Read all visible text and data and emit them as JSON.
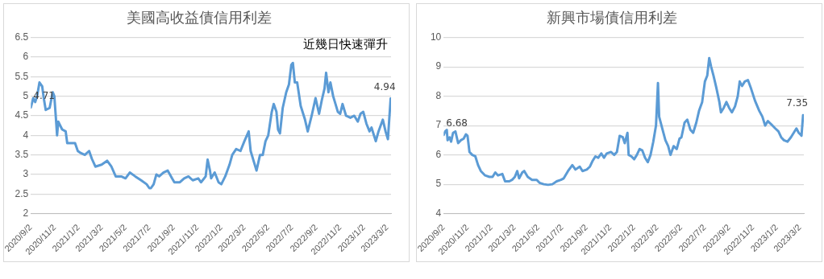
{
  "chart_data": [
    {
      "type": "line",
      "title": "美國高收益債信用利差",
      "x": [
        "2020-09-02",
        "2020-09-08",
        "2020-09-13",
        "2020-09-18",
        "2020-09-24",
        "2020-10-01",
        "2020-10-05",
        "2020-10-10",
        "2020-10-20",
        "2020-10-28",
        "2020-11-01",
        "2020-11-06",
        "2020-11-08",
        "2020-11-11",
        "2020-11-21",
        "2020-11-30",
        "2020-12-04",
        "2020-12-13",
        "2020-12-24",
        "2020-12-31",
        "2021-01-07",
        "2021-01-18",
        "2021-01-29",
        "2021-02-05",
        "2021-02-14",
        "2021-03-02",
        "2021-03-16",
        "2021-03-27",
        "2021-04-07",
        "2021-04-21",
        "2021-05-02",
        "2021-05-13",
        "2021-05-27",
        "2021-06-11",
        "2021-06-25",
        "2021-07-02",
        "2021-07-06",
        "2021-07-13",
        "2021-07-20",
        "2021-07-27",
        "2021-08-07",
        "2021-08-18",
        "2021-08-29",
        "2021-09-04",
        "2021-09-18",
        "2021-09-29",
        "2021-10-10",
        "2021-10-21",
        "2021-11-04",
        "2021-11-11",
        "2021-11-23",
        "2021-11-28",
        "2021-12-04",
        "2021-12-07",
        "2021-12-16",
        "2021-12-26",
        "2022-01-02",
        "2022-01-12",
        "2022-01-23",
        "2022-01-30",
        "2022-02-09",
        "2022-02-20",
        "2022-03-02",
        "2022-03-13",
        "2022-03-18",
        "2022-03-27",
        "2022-04-02",
        "2022-04-11",
        "2022-04-18",
        "2022-04-25",
        "2022-05-02",
        "2022-05-11",
        "2022-05-16",
        "2022-05-23",
        "2022-05-27",
        "2022-06-01",
        "2022-06-08",
        "2022-06-17",
        "2022-06-24",
        "2022-06-30",
        "2022-07-04",
        "2022-07-09",
        "2022-07-15",
        "2022-07-24",
        "2022-08-04",
        "2022-08-11",
        "2022-08-21",
        "2022-08-31",
        "2022-09-09",
        "2022-09-16",
        "2022-09-23",
        "2022-09-27",
        "2022-10-03",
        "2022-10-08",
        "2022-10-15",
        "2022-10-27",
        "2022-11-02",
        "2022-11-08",
        "2022-11-17",
        "2022-11-28",
        "2022-12-08",
        "2022-12-17",
        "2022-12-24",
        "2022-12-31",
        "2023-01-08",
        "2023-01-16",
        "2023-01-21",
        "2023-02-01",
        "2023-02-08",
        "2023-02-19",
        "2023-02-26",
        "2023-03-04",
        "2023-03-11"
      ],
      "series": [
        {
          "color": "#5b9bd5",
          "values": [
            4.71,
            4.95,
            4.85,
            5.0,
            5.35,
            5.25,
            4.95,
            4.65,
            4.7,
            5.1,
            5.0,
            4.3,
            4.0,
            4.35,
            4.15,
            4.1,
            3.8,
            3.8,
            3.8,
            3.6,
            3.55,
            3.5,
            3.6,
            3.4,
            3.2,
            3.25,
            3.35,
            3.2,
            2.95,
            2.95,
            2.9,
            3.05,
            2.95,
            2.85,
            2.75,
            2.65,
            2.65,
            2.75,
            3.0,
            2.95,
            3.05,
            3.1,
            2.9,
            2.8,
            2.8,
            2.9,
            2.95,
            2.85,
            2.9,
            2.8,
            2.95,
            3.38,
            3.1,
            2.9,
            3.05,
            2.8,
            2.75,
            2.95,
            3.25,
            3.5,
            3.65,
            3.6,
            3.85,
            4.1,
            3.6,
            3.3,
            3.1,
            3.5,
            3.5,
            3.85,
            4.0,
            4.6,
            4.8,
            4.6,
            4.15,
            4.05,
            4.7,
            5.1,
            5.3,
            5.8,
            5.85,
            5.35,
            5.35,
            4.75,
            4.4,
            4.1,
            4.5,
            4.95,
            4.55,
            4.9,
            5.2,
            5.6,
            5.1,
            5.35,
            5.0,
            4.6,
            4.55,
            4.8,
            4.5,
            4.45,
            4.5,
            4.35,
            4.55,
            4.6,
            4.3,
            4.1,
            4.2,
            3.85,
            4.1,
            4.4,
            4.1,
            3.9,
            4.94
          ]
        }
      ],
      "xlim": [
        "2020-09-02",
        "2023-03-12"
      ],
      "xticks": [
        {
          "value": "2020-09-02",
          "label": "2020/9/2"
        },
        {
          "value": "2020-11-02",
          "label": "2020/11/2"
        },
        {
          "value": "2021-01-02",
          "label": "2021/1/2"
        },
        {
          "value": "2021-03-02",
          "label": "2021/3/2"
        },
        {
          "value": "2021-05-02",
          "label": "2021/5/2"
        },
        {
          "value": "2021-07-02",
          "label": "2021/7/2"
        },
        {
          "value": "2021-09-02",
          "label": "2021/9/2"
        },
        {
          "value": "2021-11-02",
          "label": "2021/11/2"
        },
        {
          "value": "2022-01-02",
          "label": "2022/1/2"
        },
        {
          "value": "2022-03-02",
          "label": "2022/3/2"
        },
        {
          "value": "2022-05-02",
          "label": "2022/5/2"
        },
        {
          "value": "2022-07-02",
          "label": "2022/7/2"
        },
        {
          "value": "2022-09-02",
          "label": "2022/9/2"
        },
        {
          "value": "2022-11-02",
          "label": "2022/11/2"
        },
        {
          "value": "2023-01-02",
          "label": "2023/1/2"
        },
        {
          "value": "2023-03-02",
          "label": "2023/3/2"
        }
      ],
      "ylim": [
        2,
        6.5
      ],
      "yticks": [
        2,
        2.5,
        3,
        3.5,
        4,
        4.5,
        5,
        5.5,
        6,
        6.5
      ],
      "grid": "y",
      "legend": false,
      "marker": "none",
      "line_style": "solid",
      "annotations": [
        "近幾日快速彈升",
        {
          "text": "4.71",
          "x": "2020-09-02",
          "y": 4.71
        },
        {
          "text": "4.94",
          "x": "2023-03-11",
          "y": 4.94
        }
      ]
    },
    {
      "type": "line",
      "title": "新興市場債信用利差",
      "x": [
        "2020-09-02",
        "2020-09-06",
        "2020-09-10",
        "2020-09-12",
        "2020-09-17",
        "2020-09-21",
        "2020-09-26",
        "2020-10-02",
        "2020-10-09",
        "2020-10-16",
        "2020-10-23",
        "2020-10-29",
        "2020-11-02",
        "2020-11-07",
        "2020-11-14",
        "2020-11-22",
        "2020-11-29",
        "2020-12-06",
        "2020-12-17",
        "2020-12-28",
        "2021-01-05",
        "2021-01-12",
        "2021-01-19",
        "2021-01-30",
        "2021-02-06",
        "2021-02-17",
        "2021-02-24",
        "2021-03-03",
        "2021-03-09",
        "2021-03-14",
        "2021-03-22",
        "2021-03-27",
        "2021-04-05",
        "2021-04-16",
        "2021-04-28",
        "2021-05-05",
        "2021-05-16",
        "2021-05-27",
        "2021-06-07",
        "2021-06-18",
        "2021-06-29",
        "2021-07-06",
        "2021-07-17",
        "2021-07-28",
        "2021-08-05",
        "2021-08-16",
        "2021-08-23",
        "2021-09-03",
        "2021-09-11",
        "2021-09-18",
        "2021-09-25",
        "2021-10-02",
        "2021-10-10",
        "2021-10-17",
        "2021-10-24",
        "2021-11-04",
        "2021-11-12",
        "2021-11-19",
        "2021-11-26",
        "2021-12-04",
        "2021-12-09",
        "2021-12-16",
        "2021-12-19",
        "2021-12-26",
        "2022-01-02",
        "2022-01-09",
        "2022-01-16",
        "2022-01-23",
        "2022-01-30",
        "2022-02-06",
        "2022-02-13",
        "2022-02-20",
        "2022-02-27",
        "2022-03-04",
        "2022-03-07",
        "2022-03-15",
        "2022-03-23",
        "2022-03-30",
        "2022-04-05",
        "2022-04-13",
        "2022-04-21",
        "2022-04-28",
        "2022-05-03",
        "2022-05-11",
        "2022-05-18",
        "2022-05-26",
        "2022-06-02",
        "2022-06-10",
        "2022-06-17",
        "2022-06-25",
        "2022-07-02",
        "2022-07-08",
        "2022-07-13",
        "2022-07-18",
        "2022-07-24",
        "2022-07-31",
        "2022-08-08",
        "2022-08-12",
        "2022-08-19",
        "2022-08-26",
        "2022-09-02",
        "2022-09-09",
        "2022-09-17",
        "2022-09-24",
        "2022-09-29",
        "2022-10-05",
        "2022-10-12",
        "2022-10-20",
        "2022-10-27",
        "2022-11-07",
        "2022-11-18",
        "2022-11-26",
        "2022-12-03",
        "2022-12-10",
        "2022-12-18",
        "2022-12-29",
        "2023-01-06",
        "2023-01-13",
        "2023-01-20",
        "2023-01-29",
        "2023-02-07",
        "2023-02-14",
        "2023-02-21",
        "2023-02-27",
        "2023-03-03",
        "2023-03-06",
        "2023-03-10"
      ],
      "series": [
        {
          "color": "#5b9bd5",
          "values": [
            6.68,
            6.8,
            6.85,
            6.5,
            6.6,
            6.45,
            6.75,
            6.8,
            6.4,
            6.5,
            6.55,
            6.7,
            6.65,
            6.1,
            6.0,
            5.95,
            5.65,
            5.45,
            5.3,
            5.25,
            5.25,
            5.4,
            5.3,
            5.35,
            5.1,
            5.1,
            5.15,
            5.25,
            5.45,
            5.2,
            5.4,
            5.45,
            5.25,
            5.15,
            5.15,
            5.05,
            5.0,
            4.98,
            5.0,
            5.1,
            5.15,
            5.2,
            5.45,
            5.65,
            5.5,
            5.6,
            5.45,
            5.5,
            5.6,
            5.8,
            5.95,
            5.9,
            6.05,
            5.9,
            6.05,
            6.1,
            6.0,
            6.1,
            6.65,
            6.6,
            6.4,
            6.75,
            6.0,
            5.95,
            5.85,
            6.0,
            6.2,
            6.15,
            5.9,
            5.75,
            6.0,
            6.45,
            7.0,
            8.45,
            7.3,
            6.9,
            6.5,
            6.3,
            6.0,
            6.3,
            6.2,
            6.55,
            6.6,
            7.1,
            7.2,
            6.85,
            6.75,
            7.1,
            7.5,
            7.8,
            8.5,
            8.7,
            9.3,
            9.0,
            8.7,
            8.3,
            7.8,
            7.45,
            7.6,
            7.8,
            7.6,
            7.45,
            7.65,
            8.0,
            8.5,
            8.35,
            8.5,
            8.55,
            8.3,
            7.85,
            7.5,
            7.3,
            7.0,
            7.15,
            7.05,
            6.9,
            6.8,
            6.6,
            6.5,
            6.45,
            6.6,
            6.75,
            6.9,
            6.75,
            6.7,
            6.65,
            7.35
          ]
        }
      ],
      "xlim": [
        "2020-09-02",
        "2023-03-12"
      ],
      "xticks": [
        {
          "value": "2020-09-02",
          "label": "2020/9/2"
        },
        {
          "value": "2020-11-02",
          "label": "2020/11/2"
        },
        {
          "value": "2021-01-02",
          "label": "2021/1/2"
        },
        {
          "value": "2021-03-02",
          "label": "2021/3/2"
        },
        {
          "value": "2021-05-02",
          "label": "2021/5/2"
        },
        {
          "value": "2021-07-02",
          "label": "2021/7/2"
        },
        {
          "value": "2021-09-02",
          "label": "2021/9/2"
        },
        {
          "value": "2021-11-02",
          "label": "2021/11/2"
        },
        {
          "value": "2022-01-02",
          "label": "2022/1/2"
        },
        {
          "value": "2022-03-02",
          "label": "2022/3/2"
        },
        {
          "value": "2022-05-02",
          "label": "2022/5/2"
        },
        {
          "value": "2022-07-02",
          "label": "2022/7/2"
        },
        {
          "value": "2022-09-02",
          "label": "2022/9/2"
        },
        {
          "value": "2022-11-02",
          "label": "2022/11/2"
        },
        {
          "value": "2023-01-02",
          "label": "2023/1/2"
        },
        {
          "value": "2023-03-02",
          "label": "2023/3/2"
        }
      ],
      "ylim": [
        4,
        10
      ],
      "yticks": [
        4,
        5,
        6,
        7,
        8,
        9,
        10
      ],
      "grid": "y",
      "legend": false,
      "marker": "none",
      "line_style": "solid",
      "annotations": [
        {
          "text": "6.68",
          "x": "2020-09-02",
          "y": 6.68
        },
        {
          "text": "7.35",
          "x": "2023-03-10",
          "y": 7.35
        }
      ]
    }
  ]
}
